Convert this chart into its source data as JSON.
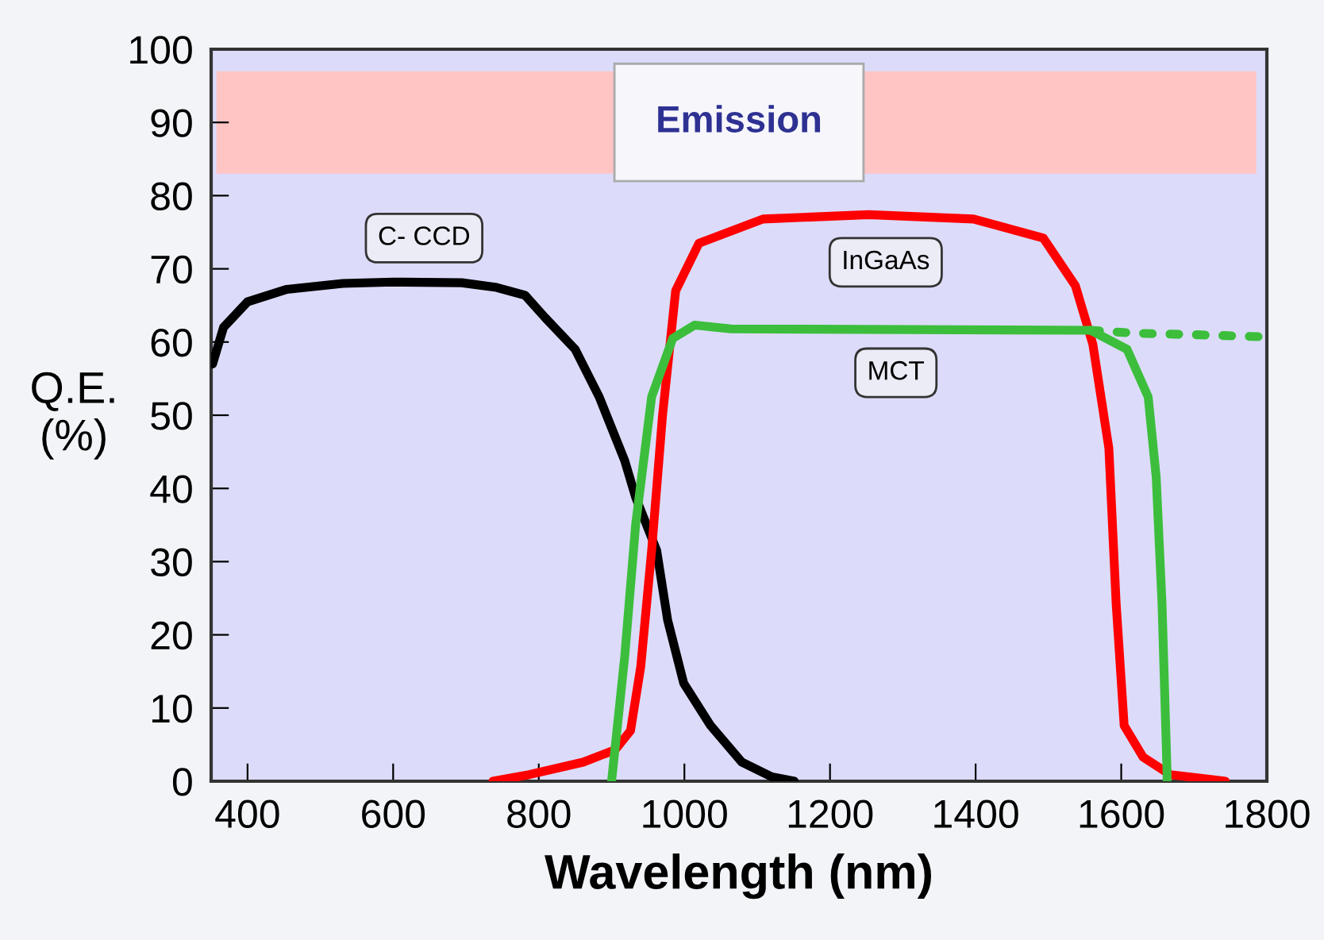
{
  "chart_data": {
    "type": "line",
    "xlabel": "Wavelength (nm)",
    "ylabel": "Q.E.\n(%)",
    "xlim": [
      350,
      1800
    ],
    "ylim": [
      0,
      100
    ],
    "xticks": [
      400,
      600,
      800,
      1000,
      1200,
      1400,
      1600,
      1800
    ],
    "yticks": [
      0,
      10,
      20,
      30,
      40,
      50,
      60,
      70,
      80,
      90,
      100
    ],
    "grid": false,
    "legend": false,
    "marker": "none",
    "series": [
      {
        "name": "C- CCD",
        "color": "#000000",
        "line_style": "solid",
        "x": [
          352,
          367,
          400,
          454,
          531,
          600,
          694,
          740,
          781,
          809,
          850,
          883,
          918,
          933,
          962,
          977,
          999,
          1036,
          1079,
          1120,
          1151
        ],
        "values": [
          57,
          62,
          65.5,
          67.2,
          68,
          68.2,
          68.1,
          67.5,
          66.4,
          63.3,
          59,
          52.5,
          43.8,
          38.8,
          31.5,
          22,
          13.4,
          7.6,
          2.6,
          0.6,
          0
        ]
      },
      {
        "name": "InGaAs",
        "color": "#ff0000",
        "line_style": "solid",
        "x": [
          737,
          787,
          861,
          905,
          926,
          940,
          955,
          970,
          988,
          1020,
          1108,
          1253,
          1397,
          1493,
          1537,
          1561,
          1583,
          1593,
          1604,
          1630,
          1667,
          1743
        ],
        "values": [
          0,
          0.9,
          2.6,
          4.3,
          6.9,
          15.6,
          31.5,
          50,
          67,
          73.5,
          76.8,
          77.4,
          76.8,
          74.2,
          67.7,
          59.7,
          45.5,
          24.3,
          7.6,
          3.3,
          0.9,
          0
        ]
      },
      {
        "name": "MCT",
        "color": "#3cbe3c",
        "line_style": "solid",
        "x": [
          900,
          918,
          933,
          955,
          984,
          1014,
          1064,
          1558,
          1608,
          1637,
          1648,
          1656,
          1663,
          1663
        ],
        "values": [
          0,
          17,
          35,
          52.5,
          60.5,
          62.3,
          61.8,
          61.6,
          59,
          52.5,
          41.6,
          24.3,
          1,
          0
        ]
      },
      {
        "color": "#3cbe3c",
        "line_style": "dotted",
        "x": [
          1558,
          1620,
          1700,
          1800
        ],
        "values": [
          61.6,
          61.2,
          61,
          60.7
        ]
      }
    ],
    "bands": [
      {
        "axis": "y",
        "from": 83,
        "to": 97,
        "label": "Emission",
        "color": "#ffc4c4"
      }
    ]
  }
}
